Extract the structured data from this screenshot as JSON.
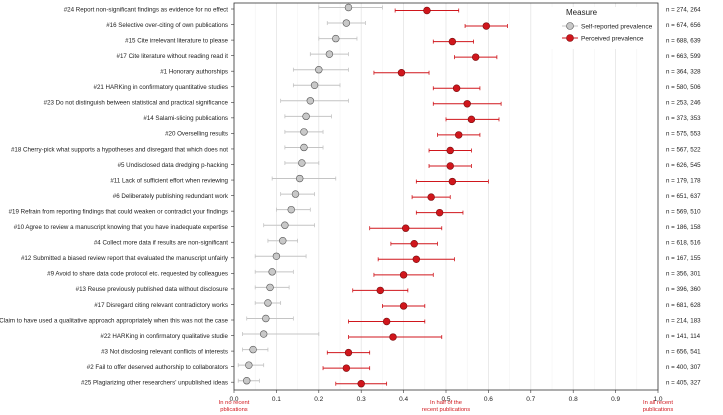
{
  "chart_data": {
    "type": "dot_errorbar",
    "title": "",
    "xlabel": "",
    "ylabel": "",
    "xlim": [
      0,
      1
    ],
    "x_ticks": [
      "0.0",
      "0.1",
      "0.2",
      "0.3",
      "0.4",
      "0.5",
      "0.6",
      "0.7",
      "0.8",
      "0.9",
      "1.0"
    ],
    "x_annotations": [
      {
        "value": 0.0,
        "text": "In no recent\npblications"
      },
      {
        "value": 0.5,
        "text": "In half of the\nrecent publications"
      },
      {
        "value": 1.0,
        "text": "In all recent\npublications"
      }
    ],
    "legend": {
      "title": "Measure",
      "position": "top-right",
      "entries": [
        {
          "name": "Self-reported prevalence",
          "color": "#c8c8c8"
        },
        {
          "name": "Perceived prevalence",
          "color": "#d0161c"
        }
      ]
    },
    "series_colors": {
      "self": "#bdbdbd",
      "perceived": "#d0161c",
      "self_err": "#c4c4c4",
      "perceived_err": "#d0161c"
    },
    "items": [
      {
        "label": "#24 Report non-significant findings as evidence for no effect",
        "n": "n = 274, 264",
        "self": 0.27,
        "self_lo": 0.2,
        "self_hi": 0.35,
        "perc": 0.455,
        "perc_lo": 0.38,
        "perc_hi": 0.53
      },
      {
        "label": "#16 Selective over-citing of own publications",
        "n": "n = 674, 656",
        "self": 0.265,
        "self_lo": 0.22,
        "self_hi": 0.31,
        "perc": 0.595,
        "perc_lo": 0.545,
        "perc_hi": 0.645
      },
      {
        "label": "#15 Cite irrelevant literature to please",
        "n": "n = 688, 639",
        "self": 0.24,
        "self_lo": 0.2,
        "self_hi": 0.29,
        "perc": 0.515,
        "perc_lo": 0.47,
        "perc_hi": 0.565
      },
      {
        "label": "#17 Cite literature without reading read it",
        "n": "n = 663, 599",
        "self": 0.225,
        "self_lo": 0.18,
        "self_hi": 0.27,
        "perc": 0.57,
        "perc_lo": 0.52,
        "perc_hi": 0.62
      },
      {
        "label": "#1 Honorary authorships",
        "n": "n = 364, 328",
        "self": 0.2,
        "self_lo": 0.14,
        "self_hi": 0.27,
        "perc": 0.395,
        "perc_lo": 0.33,
        "perc_hi": 0.46
      },
      {
        "label": "#21 HARKing in confirmatory quantitative studies",
        "n": "n = 580, 506",
        "self": 0.19,
        "self_lo": 0.14,
        "self_hi": 0.25,
        "perc": 0.525,
        "perc_lo": 0.47,
        "perc_hi": 0.58
      },
      {
        "label": "#23 Do not distinguish between statistical and practical significance",
        "n": "n = 253, 246",
        "self": 0.18,
        "self_lo": 0.11,
        "self_hi": 0.27,
        "perc": 0.55,
        "perc_lo": 0.47,
        "perc_hi": 0.63
      },
      {
        "label": "#14 Salami-slicing publications",
        "n": "n = 373, 353",
        "self": 0.17,
        "self_lo": 0.12,
        "self_hi": 0.23,
        "perc": 0.56,
        "perc_lo": 0.5,
        "perc_hi": 0.625
      },
      {
        "label": "#20 Overselling results",
        "n": "n = 575, 553",
        "self": 0.165,
        "self_lo": 0.12,
        "self_hi": 0.21,
        "perc": 0.53,
        "perc_lo": 0.48,
        "perc_hi": 0.58
      },
      {
        "label": "#18 Cherry-pick what supports a hypotheses and disregard that which does not",
        "n": "n = 567, 522",
        "self": 0.165,
        "self_lo": 0.12,
        "self_hi": 0.21,
        "perc": 0.51,
        "perc_lo": 0.46,
        "perc_hi": 0.56
      },
      {
        "label": "#5 Undisclosed data dredging  p-hacking",
        "n": "n = 626, 545",
        "self": 0.16,
        "self_lo": 0.12,
        "self_hi": 0.2,
        "perc": 0.51,
        "perc_lo": 0.46,
        "perc_hi": 0.56
      },
      {
        "label": "#11 Lack of sufficient effort when reviewing",
        "n": "n = 179, 178",
        "self": 0.155,
        "self_lo": 0.09,
        "self_hi": 0.24,
        "perc": 0.515,
        "perc_lo": 0.43,
        "perc_hi": 0.6
      },
      {
        "label": "#6 Deliberately publishing redundant work",
        "n": "n = 651, 637",
        "self": 0.145,
        "self_lo": 0.11,
        "self_hi": 0.19,
        "perc": 0.465,
        "perc_lo": 0.42,
        "perc_hi": 0.51
      },
      {
        "label": "#19 Refrain from reporting findings that could weaken or contradict your findings",
        "n": "n = 569, 510",
        "self": 0.135,
        "self_lo": 0.1,
        "self_hi": 0.18,
        "perc": 0.485,
        "perc_lo": 0.43,
        "perc_hi": 0.54
      },
      {
        "label": "#10 Agree to review a manuscript knowing that you have inadequate expertise",
        "n": "n = 186, 158",
        "self": 0.12,
        "self_lo": 0.07,
        "self_hi": 0.19,
        "perc": 0.405,
        "perc_lo": 0.32,
        "perc_hi": 0.49
      },
      {
        "label": "#4 Collect more data if results are non-significant",
        "n": "n = 618, 516",
        "self": 0.115,
        "self_lo": 0.08,
        "self_hi": 0.15,
        "perc": 0.425,
        "perc_lo": 0.37,
        "perc_hi": 0.48
      },
      {
        "label": "#12 Submitted a biased review report that evaluated the manuscript unfairly",
        "n": "n = 167, 155",
        "self": 0.1,
        "self_lo": 0.05,
        "self_hi": 0.17,
        "perc": 0.43,
        "perc_lo": 0.34,
        "perc_hi": 0.52
      },
      {
        "label": "#9 Avoid to share data  code  protocol etc. requested by colleagues",
        "n": "n = 356, 301",
        "self": 0.09,
        "self_lo": 0.05,
        "self_hi": 0.14,
        "perc": 0.4,
        "perc_lo": 0.33,
        "perc_hi": 0.47
      },
      {
        "label": "#13 Reuse previously published data without disclosure",
        "n": "n = 396, 360",
        "self": 0.085,
        "self_lo": 0.05,
        "self_hi": 0.13,
        "perc": 0.345,
        "perc_lo": 0.28,
        "perc_hi": 0.41
      },
      {
        "label": "#17 Disregard citing relevant contradictory works",
        "n": "n = 681, 628",
        "self": 0.08,
        "self_lo": 0.05,
        "self_hi": 0.11,
        "perc": 0.4,
        "perc_lo": 0.35,
        "perc_hi": 0.45
      },
      {
        "label": "#8 Claim to have used a qualitative approach appropriately  when this was not the case",
        "n": "n = 214, 183",
        "self": 0.075,
        "self_lo": 0.03,
        "self_hi": 0.14,
        "perc": 0.36,
        "perc_lo": 0.27,
        "perc_hi": 0.45
      },
      {
        "label": "#22 HARKing in confirmatory qualitative studie",
        "n": "n = 141, 114",
        "self": 0.07,
        "self_lo": 0.02,
        "self_hi": 0.2,
        "perc": 0.375,
        "perc_lo": 0.27,
        "perc_hi": 0.49
      },
      {
        "label": "#3 Not disclosing relevant conflicts of interests",
        "n": "n = 656, 541",
        "self": 0.045,
        "self_lo": 0.02,
        "self_hi": 0.08,
        "perc": 0.27,
        "perc_lo": 0.22,
        "perc_hi": 0.32
      },
      {
        "label": "#2 Fail to offer deserved authorship to collaborators",
        "n": "n = 400, 307",
        "self": 0.035,
        "self_lo": 0.01,
        "self_hi": 0.07,
        "perc": 0.265,
        "perc_lo": 0.21,
        "perc_hi": 0.32
      },
      {
        "label": "#25 Plagiarizing other researchers' unpublished ideas",
        "n": "n = 405, 327",
        "self": 0.03,
        "self_lo": 0.01,
        "self_hi": 0.06,
        "perc": 0.3,
        "perc_lo": 0.24,
        "perc_hi": 0.36
      }
    ]
  }
}
